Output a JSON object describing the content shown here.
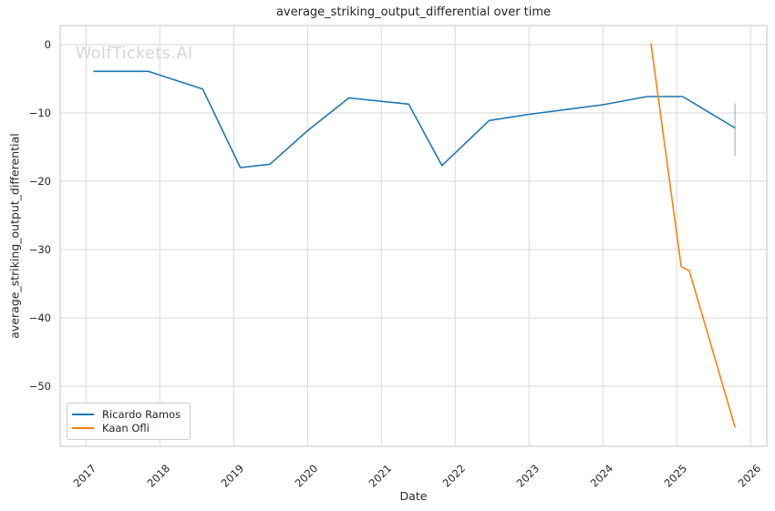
{
  "watermark": "WolfTickets.AI",
  "colors": {
    "grid": "#d9d9d9",
    "spine": "#c6c6c6",
    "text": "#262626",
    "series_blue": "#1f77b4",
    "series_orange": "#ff7f0e",
    "error_bar": "rgba(31,119,180,0.38)",
    "watermark": "#d6d6d6"
  },
  "chart_data": {
    "type": "line",
    "title": "average_striking_output_differential over time",
    "xlabel": "Date",
    "ylabel": "average_striking_output_differential",
    "watermark": "WolfTickets.AI",
    "grid": true,
    "legend_position": "lower left",
    "xlim": [
      2016.65,
      2026.22
    ],
    "ylim": [
      -58.8,
      2.8
    ],
    "x_ticks": [
      2017,
      2018,
      2019,
      2020,
      2021,
      2022,
      2023,
      2024,
      2025,
      2026
    ],
    "y_ticks": {
      "values": [
        0,
        -10,
        -20,
        -30,
        -40,
        -50
      ],
      "labels": [
        "0",
        "−10",
        "−20",
        "−30",
        "−40",
        "−50"
      ]
    },
    "series": [
      {
        "name": "Ricardo Ramos",
        "color": "#1f77b4",
        "x": [
          2017.1,
          2017.84,
          2018.58,
          2019.09,
          2019.49,
          2020.0,
          2020.56,
          2021.37,
          2021.82,
          2022.46,
          2023.0,
          2024.0,
          2024.6,
          2025.08,
          2025.79
        ],
        "y": [
          -3.9,
          -3.9,
          -6.5,
          -18.0,
          -17.5,
          -12.6,
          -7.8,
          -8.7,
          -17.7,
          -11.1,
          -10.2,
          -8.8,
          -7.6,
          -7.6,
          -12.2
        ]
      },
      {
        "name": "Kaan Ofli",
        "color": "#ff7f0e",
        "x": [
          2024.65,
          2025.06,
          2025.17,
          2025.79
        ],
        "y": [
          0.2,
          -32.5,
          -33.1,
          -56.0
        ]
      }
    ],
    "error_bars": [
      {
        "series": "Ricardo Ramos",
        "x": 2025.79,
        "y_low": -16.3,
        "y_high": -8.6,
        "color": "rgba(31,119,180,0.38)"
      }
    ]
  }
}
